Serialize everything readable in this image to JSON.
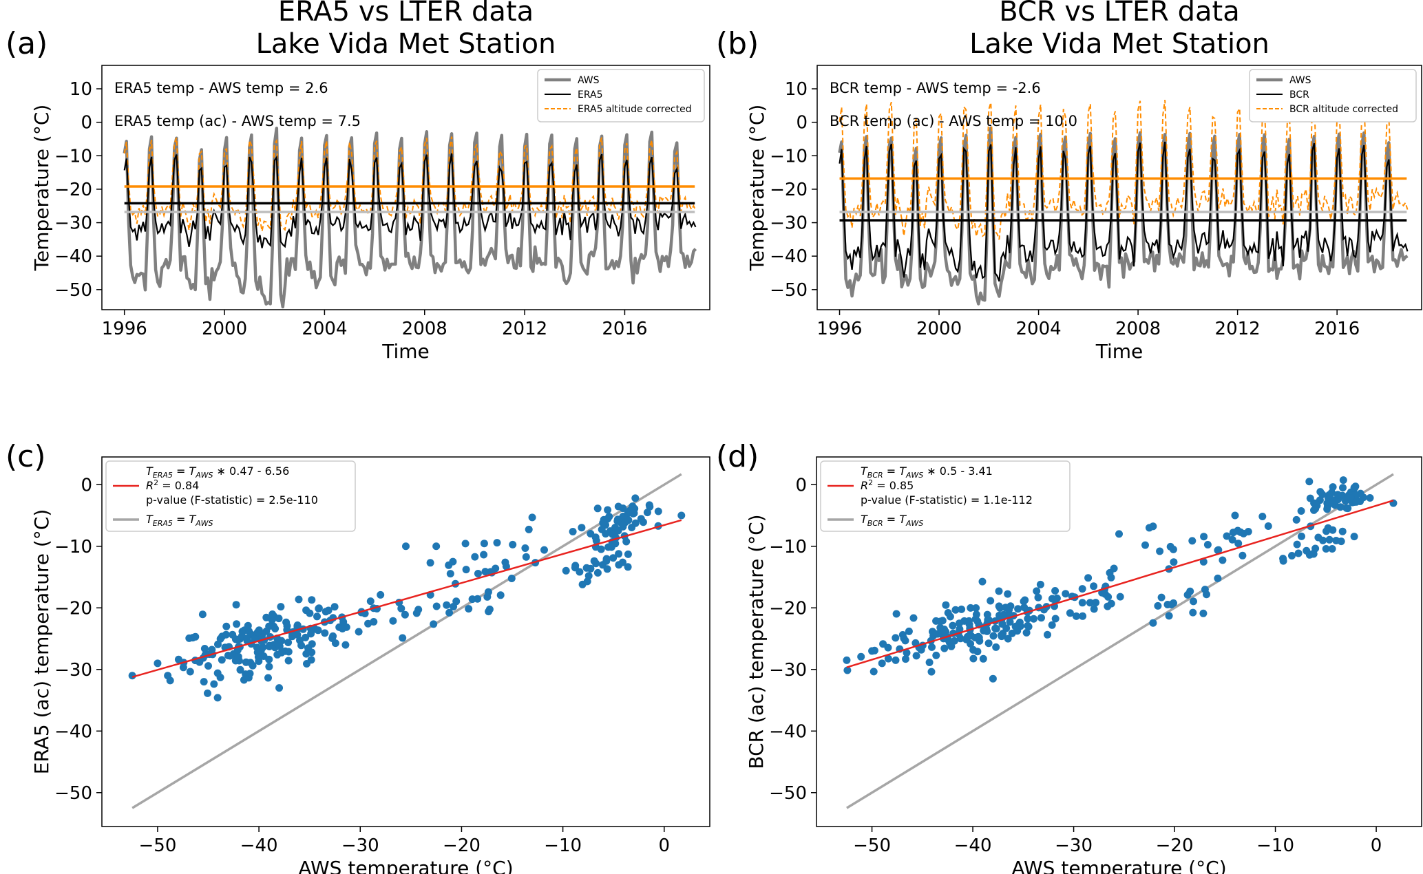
{
  "colors": {
    "aws": "#808080",
    "era": "#000000",
    "ac": "#ff8c00",
    "fit": "#e8231f",
    "identity": "#a6a6a6",
    "points": "#1f77b4"
  },
  "chart_data": [
    {
      "type": "line",
      "panel_label": "(a)",
      "title_lines": [
        "ERA5 vs LTER data",
        "Lake Vida Met Station"
      ],
      "xlabel": "Time",
      "ylabel": "Temperature (°C)",
      "xlim": [
        1995.1,
        2019.4
      ],
      "ylim": [
        -56,
        17
      ],
      "xticks": [
        1996,
        2000,
        2004,
        2008,
        2012,
        2016
      ],
      "yticks": [
        10,
        0,
        -10,
        -20,
        -30,
        -40,
        -50
      ],
      "grid": false,
      "legend_position": "top-right",
      "annotations": [
        "ERA5 temp - AWS temp = 2.6",
        "ERA5 temp (ac) - AWS temp = 7.5"
      ],
      "series": [
        {
          "name": "AWS",
          "style": "aws",
          "summer_peak": -1.5,
          "winter_trough": -44,
          "mean": -26.8,
          "peaks": [
            -3,
            -1.5,
            -2,
            -5,
            -2,
            -1,
            1.7,
            -2,
            -0.8,
            -2,
            -0.5,
            -2,
            -0.5,
            -1,
            -0.5,
            -1.5,
            -1,
            -1,
            -2,
            -1.5,
            -1,
            -0.5,
            -3.5
          ],
          "troughs": [
            -47,
            -46,
            -43,
            -49,
            -43,
            -48,
            -52.5,
            -44,
            -46,
            -41,
            -44,
            -43,
            -42,
            -42,
            -43,
            -41,
            -42,
            -43,
            -44,
            -42,
            -43,
            -42,
            -41
          ]
        },
        {
          "name": "ERA5",
          "style": "era",
          "summer_peak": -10,
          "winter_trough": -31,
          "mean": -24.2
        },
        {
          "name": "ERA5 altitude corrected",
          "style": "ac",
          "summer_peak": -4,
          "winter_trough": -28,
          "mean": -19.2
        }
      ],
      "mean_lines": [
        {
          "series": "AWS",
          "value": -26.8
        },
        {
          "series": "ERA5",
          "value": -24.2
        },
        {
          "series": "ERA5 altitude corrected",
          "value": -19.2
        }
      ]
    },
    {
      "type": "line",
      "panel_label": "(b)",
      "title_lines": [
        "BCR vs LTER data",
        "Lake Vida Met Station"
      ],
      "xlabel": "Time",
      "ylabel": "Temperature (°C)",
      "xlim": [
        1995.1,
        2019.4
      ],
      "ylim": [
        -56,
        17
      ],
      "xticks": [
        1996,
        2000,
        2004,
        2008,
        2012,
        2016
      ],
      "yticks": [
        10,
        0,
        -10,
        -20,
        -30,
        -40,
        -50
      ],
      "grid": false,
      "legend_position": "top-right",
      "annotations": [
        "BCR temp - AWS temp = -2.6",
        "BCR temp (ac) - AWS temp = 10.0"
      ],
      "series": [
        {
          "name": "AWS",
          "style": "aws",
          "summer_peak": -1.5,
          "winter_trough": -44,
          "mean": -26.8,
          "peaks": [
            -3,
            -1.5,
            -2,
            -5,
            -2,
            -1,
            1.7,
            -2,
            -0.8,
            -2,
            -0.5,
            -2,
            -0.5,
            -1,
            -0.5,
            -1.5,
            -1,
            -1,
            -2,
            -1.5,
            -1,
            -0.5,
            -3.5
          ],
          "troughs": [
            -47,
            -46,
            -43,
            -49,
            -43,
            -48,
            -52.5,
            -44,
            -46,
            -41,
            -44,
            -43,
            -42,
            -42,
            -43,
            -41,
            -42,
            -43,
            -44,
            -42,
            -43,
            -42,
            -41
          ]
        },
        {
          "name": "BCR",
          "style": "era",
          "summer_peak": -6,
          "winter_trough": -38,
          "mean": -29.3
        },
        {
          "name": "BCR altitude corrected",
          "style": "ac",
          "summer_peak": 0,
          "winter_trough": -26,
          "mean": -16.8
        }
      ],
      "mean_lines": [
        {
          "series": "AWS",
          "value": -26.8
        },
        {
          "series": "BCR",
          "value": -29.3
        },
        {
          "series": "BCR altitude corrected",
          "value": -16.8
        }
      ]
    },
    {
      "type": "scatter",
      "panel_label": "(c)",
      "xlabel": "AWS temperature (°C)",
      "ylabel": "ERA5 (ac) temperature (°C)",
      "xlim": [
        -55.5,
        4.5
      ],
      "ylim": [
        -55.5,
        4.5
      ],
      "xticks": [
        -50,
        -40,
        -30,
        -20,
        -10,
        0
      ],
      "yticks": [
        0,
        -10,
        -20,
        -30,
        -40,
        -50
      ],
      "grid": false,
      "legend_position": "top-left",
      "fit": {
        "slope": 0.47,
        "intercept": -6.56,
        "r2": 0.84,
        "p_value": "2.5e-110",
        "x_range": [
          -52.5,
          1.7
        ]
      },
      "identity_range": [
        -52.5,
        1.7
      ],
      "legend": {
        "fit_eq_T": "T",
        "fit_eq_sub": "ERA5",
        "fit_eq_T2": "T",
        "fit_eq_sub2": "AWS",
        "fit_eq_rest": "∗ 0.47 - 6.56",
        "r2_text": "= 0.84",
        "p_text": "p-value (F-statistic) = 2.5e-110",
        "id_T": "T",
        "id_sub": "ERA5",
        "id_T2": "T",
        "id_sub2": "AWS"
      },
      "clusters": [
        {
          "cx": -40,
          "cy": -26,
          "sx": 4.5,
          "sy": 2.5,
          "n": 150
        },
        {
          "cx": -30,
          "cy": -21.5,
          "sx": 3,
          "sy": 1.8,
          "n": 28
        },
        {
          "cx": -17,
          "cy": -12,
          "sx": 3.5,
          "sy": 2,
          "n": 28
        },
        {
          "cx": -19,
          "cy": -20,
          "sx": 2.5,
          "sy": 1.8,
          "n": 14
        },
        {
          "cx": -4,
          "cy": -6.5,
          "sx": 1.6,
          "sy": 1.6,
          "n": 55
        },
        {
          "cx": -6,
          "cy": -13,
          "sx": 1.6,
          "sy": 1.2,
          "n": 24
        }
      ],
      "extra_points": [
        [
          -52.5,
          -31
        ],
        [
          -50,
          -29
        ],
        [
          -49,
          -31
        ],
        [
          -38,
          -33
        ],
        [
          -25.5,
          -10
        ],
        [
          -22.5,
          -10
        ],
        [
          1.7,
          -5
        ]
      ]
    },
    {
      "type": "scatter",
      "panel_label": "(d)",
      "xlabel": "AWS temperature (°C)",
      "ylabel": "BCR (ac) temperature (°C)",
      "xlim": [
        -55.5,
        4.5
      ],
      "ylim": [
        -55.5,
        4.5
      ],
      "xticks": [
        -50,
        -40,
        -30,
        -20,
        -10,
        0
      ],
      "yticks": [
        0,
        -10,
        -20,
        -30,
        -40,
        -50
      ],
      "grid": false,
      "legend_position": "top-left",
      "fit": {
        "slope": 0.5,
        "intercept": -3.41,
        "r2": 0.85,
        "p_value": "1.1e-112",
        "x_range": [
          -52.5,
          1.7
        ]
      },
      "identity_range": [
        -52.5,
        1.7
      ],
      "legend": {
        "fit_eq_T": "T",
        "fit_eq_sub": "BCR",
        "fit_eq_T2": "T",
        "fit_eq_sub2": "AWS",
        "fit_eq_rest": "∗ 0.5 - 3.41",
        "r2_text": "= 0.85",
        "p_text": "p-value (F-statistic) = 1.1e-112",
        "id_T": "T",
        "id_sub": "BCR",
        "id_T2": "T",
        "id_sub2": "AWS"
      },
      "clusters": [
        {
          "cx": -40,
          "cy": -23.5,
          "sx": 4.5,
          "sy": 2.3,
          "n": 150
        },
        {
          "cx": -30,
          "cy": -19,
          "sx": 3,
          "sy": 1.8,
          "n": 28
        },
        {
          "cx": -18,
          "cy": -10,
          "sx": 3.5,
          "sy": 2,
          "n": 28
        },
        {
          "cx": -19,
          "cy": -19,
          "sx": 2.5,
          "sy": 1.8,
          "n": 14
        },
        {
          "cx": -4,
          "cy": -2.5,
          "sx": 1.6,
          "sy": 1.3,
          "n": 55
        },
        {
          "cx": -6,
          "cy": -10,
          "sx": 1.6,
          "sy": 1.3,
          "n": 24
        }
      ],
      "extra_points": [
        [
          -52.5,
          -28.5
        ],
        [
          -50,
          -27
        ],
        [
          -49,
          -29
        ],
        [
          -38,
          -31.5
        ],
        [
          -25.5,
          -8
        ],
        [
          -22.5,
          -7
        ],
        [
          1.7,
          -3
        ],
        [
          -14,
          -5
        ]
      ]
    }
  ]
}
